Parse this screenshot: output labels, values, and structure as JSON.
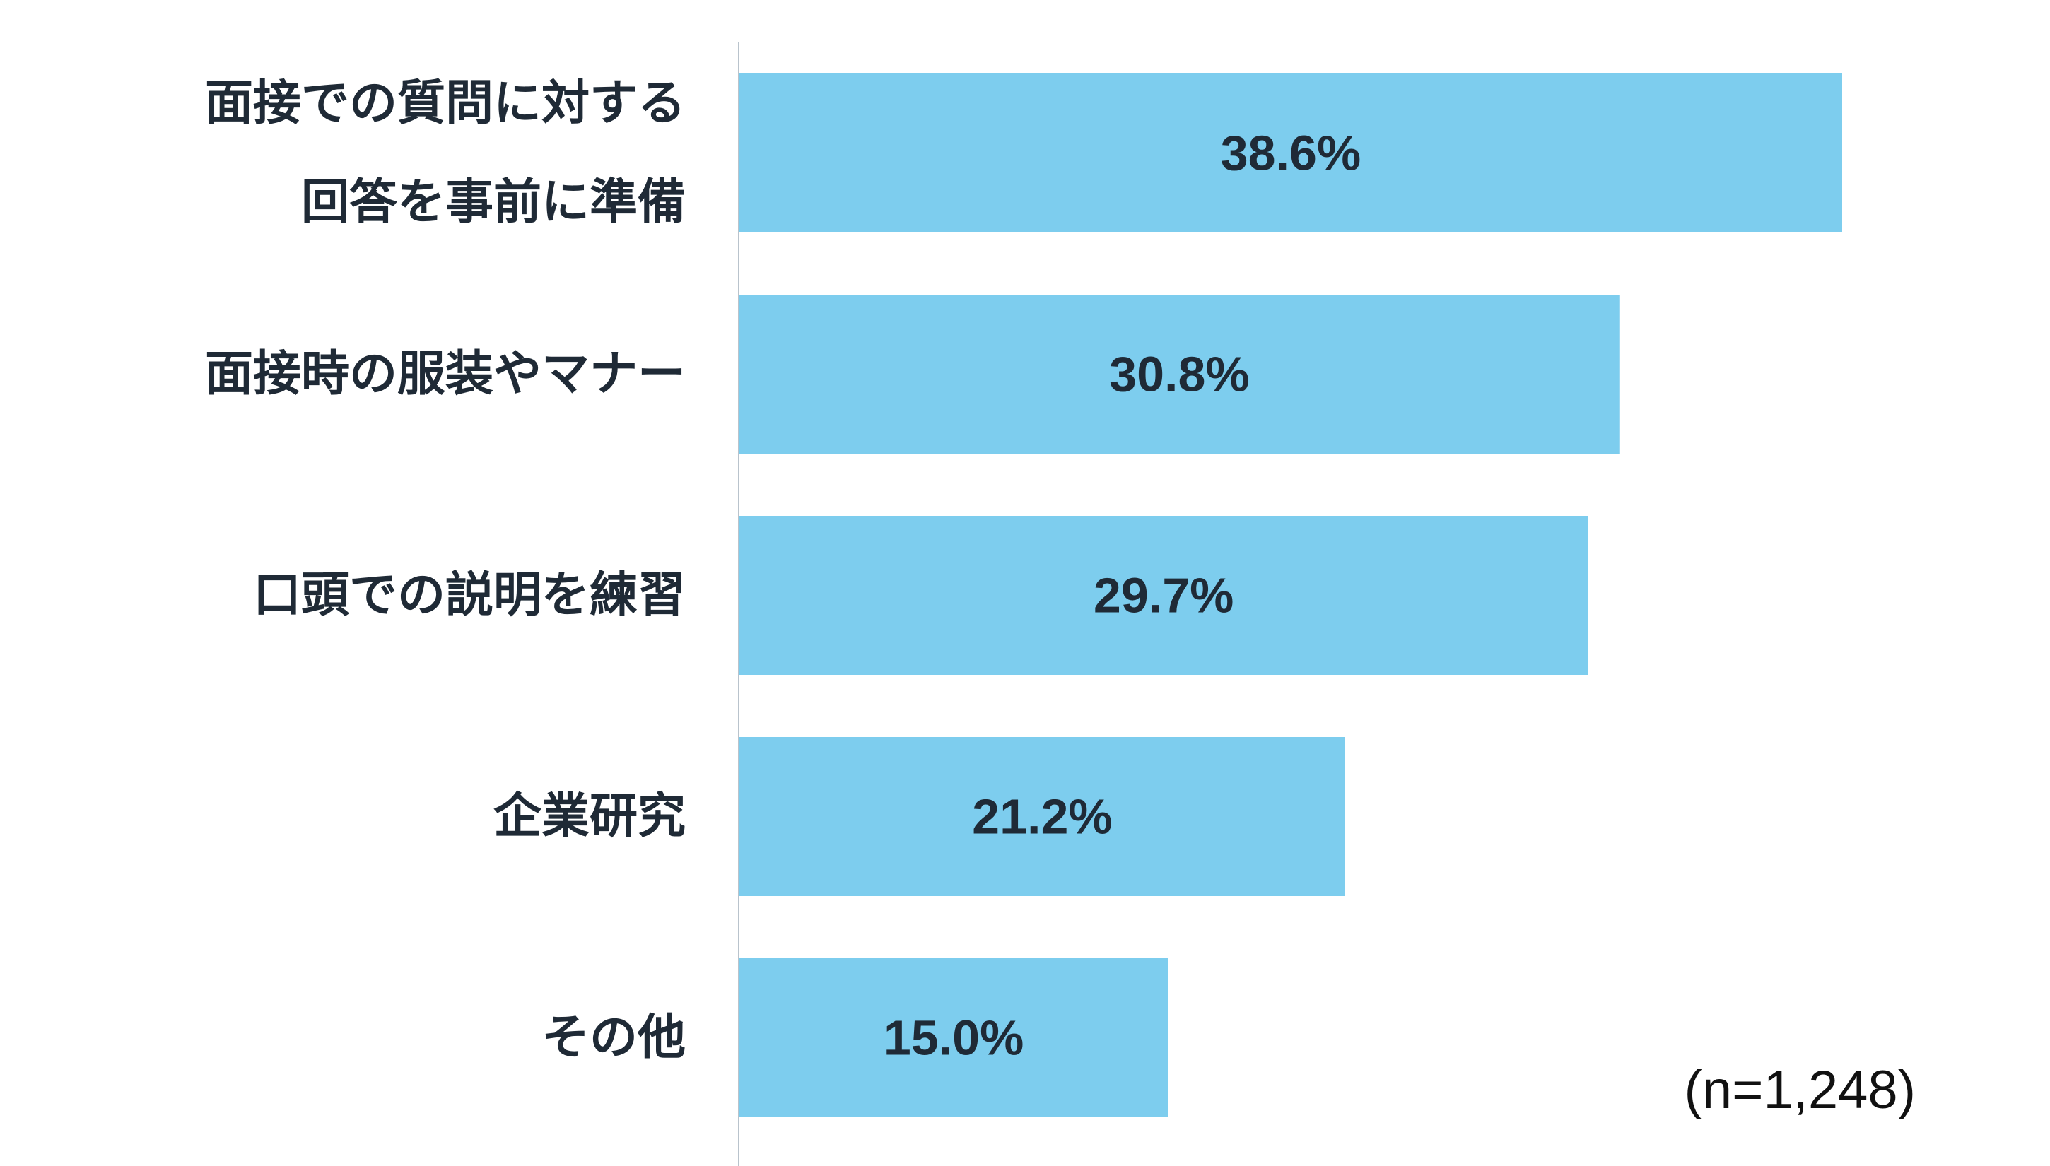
{
  "chart_data": {
    "type": "bar",
    "orientation": "horizontal",
    "categories": [
      [
        "面接での質問に対する",
        "回答を事前に準備"
      ],
      [
        "面接時の服装やマナー"
      ],
      [
        "口頭での説明を練習"
      ],
      [
        "企業研究"
      ],
      [
        "その他"
      ]
    ],
    "values": [
      38.6,
      30.8,
      29.7,
      21.2,
      15.0
    ],
    "value_labels": [
      "38.6%",
      "30.8%",
      "29.7%",
      "21.2%",
      "15.0%"
    ],
    "xlim": [
      0,
      38.6
    ],
    "grid": false,
    "legend": "none",
    "annotation": "(n=1,248)",
    "colors": {
      "bar": "#7dcdee",
      "axis": "#b9c3cc",
      "text": "#1f2a36"
    }
  }
}
